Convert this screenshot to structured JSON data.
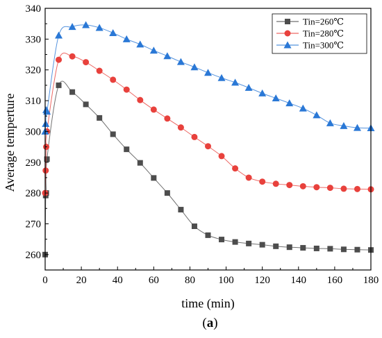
{
  "chart_data": {
    "type": "line",
    "xlabel": "time (min)",
    "ylabel": "Average temperture",
    "xlim": [
      0,
      180
    ],
    "ylim": [
      255,
      340
    ],
    "xticks": [
      0,
      20,
      40,
      60,
      80,
      100,
      120,
      140,
      160,
      180
    ],
    "yticks": [
      260,
      270,
      280,
      290,
      300,
      310,
      320,
      330,
      340
    ],
    "grid": false,
    "legend_position": "top-right",
    "series": [
      {
        "name": "Tin=260℃",
        "color": "#4d4d4d",
        "marker": "square",
        "x": [
          0,
          0.3,
          0.6,
          1,
          7.5,
          15,
          22.5,
          30,
          37.5,
          45,
          52.5,
          60,
          67.5,
          75,
          82.5,
          90,
          97.5,
          105,
          112.5,
          120,
          127.5,
          135,
          142.5,
          150,
          157.5,
          165,
          172.5,
          180
        ],
        "y": [
          260,
          279.2,
          280,
          291,
          315,
          312.8,
          308.8,
          304.4,
          299.1,
          294.2,
          289.8,
          284.9,
          280,
          274.6,
          269.2,
          266.3,
          264.9,
          264.1,
          263.6,
          263.2,
          262.7,
          262.4,
          262.2,
          262.0,
          261.9,
          261.7,
          261.6,
          261.5
        ]
      },
      {
        "name": "Tin=280℃",
        "color": "#e8413c",
        "marker": "circle",
        "x": [
          0,
          0.3,
          0.6,
          1,
          7.5,
          15,
          22.5,
          30,
          37.5,
          45,
          52.5,
          60,
          67.5,
          75,
          82.5,
          90,
          97.5,
          105,
          112.5,
          120,
          127.5,
          135,
          142.5,
          150,
          157.5,
          165,
          172.5,
          180
        ],
        "y": [
          280,
          287.3,
          295,
          300,
          323.3,
          324.4,
          322.5,
          319.7,
          316.8,
          313.6,
          310.2,
          307.1,
          304.2,
          301.3,
          298.2,
          295.2,
          292,
          288,
          285,
          283.7,
          283,
          282.6,
          282.2,
          281.9,
          281.7,
          281.4,
          281.3,
          281.2
        ]
      },
      {
        "name": "Tin=300℃",
        "color": "#2a78d6",
        "marker": "triangle",
        "x": [
          0,
          0.3,
          0.6,
          1,
          7.5,
          15,
          22.5,
          30,
          37.5,
          45,
          52.5,
          60,
          67.5,
          75,
          82.5,
          90,
          97.5,
          105,
          112.5,
          120,
          127.5,
          135,
          142.5,
          150,
          157.5,
          165,
          172.5,
          180
        ],
        "y": [
          300,
          302.5,
          307,
          306.5,
          331.2,
          334,
          334.6,
          333.7,
          332,
          330,
          328.3,
          326.3,
          324.5,
          322.6,
          320.9,
          319.1,
          317.4,
          315.9,
          314.2,
          312.4,
          310.8,
          309.2,
          307.5,
          305.3,
          302.7,
          301.8,
          301.2,
          301.1
        ]
      }
    ]
  },
  "caption": {
    "open": "(",
    "letter": "a",
    "close": ")"
  }
}
